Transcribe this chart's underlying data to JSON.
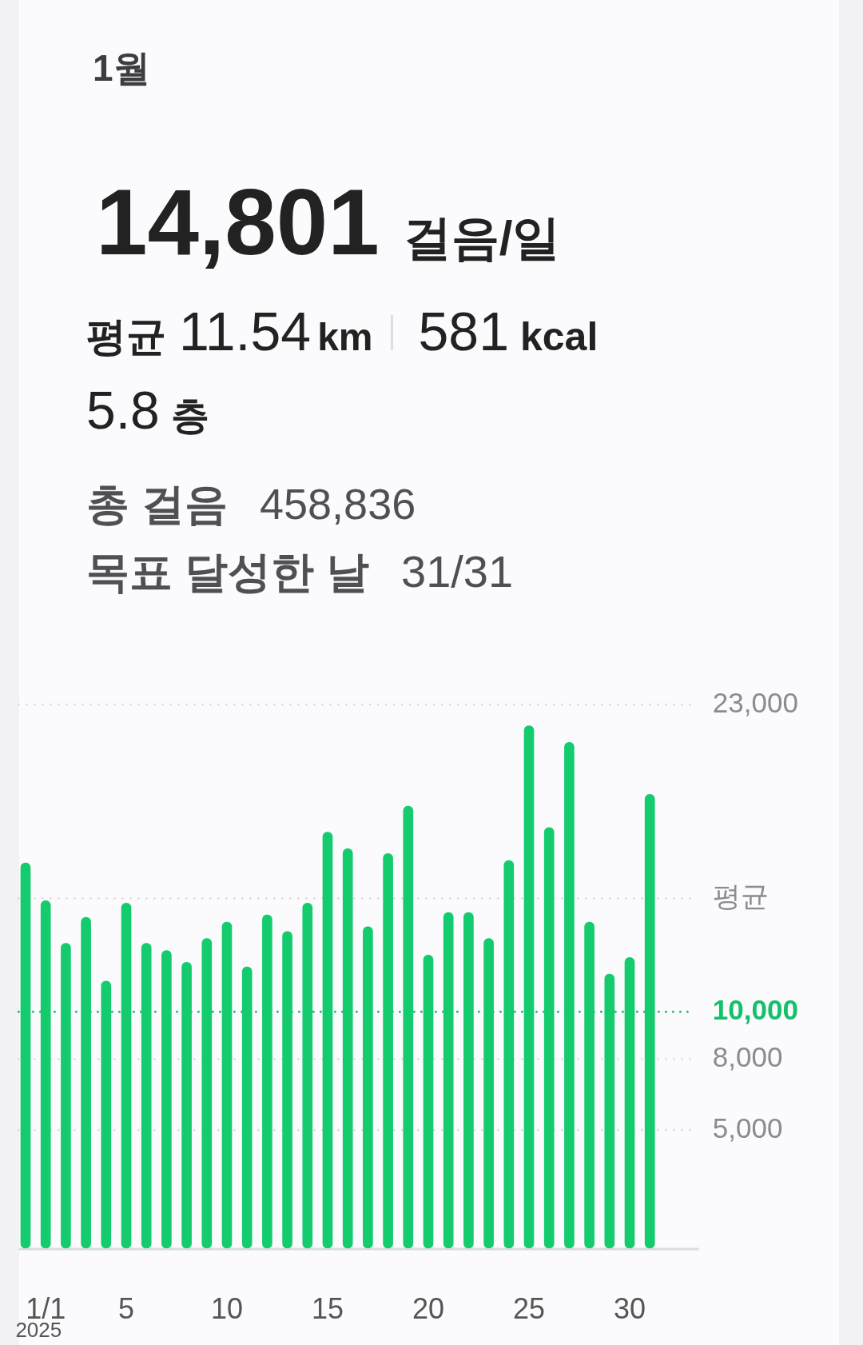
{
  "chart_data": {
    "type": "bar",
    "title": "1월",
    "xlabel": "2025",
    "annotations": [
      "14,801",
      "걸음/일",
      "평균",
      "11.54",
      "km",
      "581",
      "kcal",
      "5.8",
      "층",
      "총 걸음",
      "458,836",
      "목표 달성한 날",
      "31/31"
    ],
    "categories": [
      null,
      "1/1",
      null,
      null,
      null,
      "5",
      null,
      null,
      null,
      null,
      "10",
      null,
      null,
      null,
      null,
      "15",
      null,
      null,
      null,
      null,
      "20",
      null,
      null,
      null,
      null,
      "25",
      null,
      null,
      null,
      null,
      "30",
      null
    ],
    "values": [
      16300,
      14700,
      12900,
      14000,
      11300,
      14600,
      12900,
      12600,
      12100,
      13100,
      13800,
      11900,
      14100,
      13400,
      14600,
      17600,
      16900,
      13600,
      16700,
      18700,
      12400,
      14200,
      14200,
      13100,
      16400,
      22100,
      17800,
      21400,
      13800,
      11600,
      12300,
      19200
    ],
    "color": "#14cb6e",
    "ylim": [
      0,
      23000
    ],
    "yticks": [
      {
        "value": 5000,
        "label": "5,000"
      },
      {
        "value": 8000,
        "label": "8,000"
      },
      {
        "value": 23000,
        "label": "23,000"
      }
    ],
    "ref_lines": [
      {
        "axis": "y",
        "value": 10000,
        "label": "10,000",
        "color": "#14c06a",
        "line_style": "dotted"
      },
      {
        "axis": "y",
        "value": 14801,
        "label": "평균",
        "line_style": "dotted"
      }
    ],
    "grid": "y"
  }
}
